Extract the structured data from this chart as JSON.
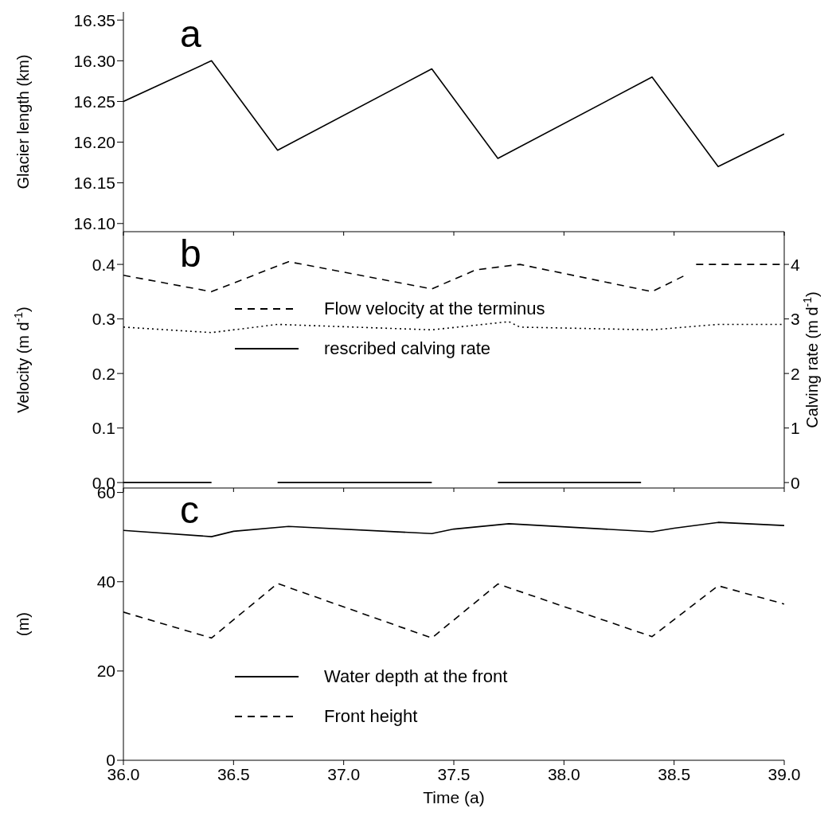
{
  "chart_data": [
    {
      "type": "line",
      "ylabel": "Glacier length (km)",
      "annotations": [
        "a"
      ],
      "xlim": [
        36,
        39
      ],
      "xticks": [
        36,
        36.5,
        37,
        37.5,
        38,
        38.5,
        39
      ],
      "ylim": [
        16.09,
        16.36
      ],
      "yticks": [
        {
          "value": 16.1,
          "label": "16.10"
        },
        {
          "value": 16.15,
          "label": "16.15"
        },
        {
          "value": 16.2,
          "label": "16.20"
        },
        {
          "value": 16.25,
          "label": "16.25"
        },
        {
          "value": 16.3,
          "label": "16.30"
        },
        {
          "value": 16.35,
          "label": "16.35"
        }
      ],
      "tick_labels": "y",
      "grid": false,
      "legend": false,
      "marker": "none",
      "series": [
        {
          "color": "#000000",
          "line_style": "solid",
          "x": [
            36.0,
            36.4,
            36.7,
            37.4,
            37.7,
            38.4,
            38.7,
            39.0
          ],
          "values": [
            16.25,
            16.3,
            16.19,
            16.29,
            16.18,
            16.28,
            16.17,
            16.21
          ]
        }
      ]
    },
    {
      "type": "line",
      "ylabel": "Velocity (m d$^{-1}$)",
      "y2label": "Calving rate (m d$^{-1}$)",
      "annotations": [
        "b"
      ],
      "xlim": [
        36,
        39
      ],
      "xticks": [
        36,
        36.5,
        37,
        37.5,
        38,
        38.5,
        39
      ],
      "ylim": [
        -0.01,
        0.46
      ],
      "yticks": [
        {
          "value": 0,
          "label": "0.0"
        },
        {
          "value": 0.1,
          "label": "0.1"
        },
        {
          "value": 0.2,
          "label": "0.2"
        },
        {
          "value": 0.3,
          "label": "0.3"
        },
        {
          "value": 0.4,
          "label": "0.4"
        }
      ],
      "y2lim": [
        -0.1,
        4.6
      ],
      "y2ticks": [
        0,
        1,
        2,
        3,
        4
      ],
      "tick_labels": "y",
      "grid": false,
      "legend": "left",
      "marker": "none",
      "series": [
        {
          "name": "Flow velocity at the terminus",
          "color": "#000000",
          "line_style": "dashed",
          "x": [
            36.0,
            36.4,
            36.75,
            37.4,
            37.6,
            37.8,
            38.4,
            38.55,
            38.57,
            38.6,
            39.0
          ],
          "values": [
            0.38,
            0.35,
            0.405,
            0.355,
            0.39,
            0.4,
            0.35,
            0.38,
            null,
            0.4,
            0.4
          ]
        },
        {
          "color": "#000000",
          "line_style": "dotted",
          "x": [
            36.0,
            36.4,
            36.7,
            37.4,
            37.75,
            37.8,
            38.4,
            38.7,
            39.0
          ],
          "values": [
            0.285,
            0.275,
            0.29,
            0.28,
            0.295,
            0.285,
            0.28,
            0.29,
            0.29
          ]
        },
        {
          "name": "rescribed calving rate",
          "color": "#000000",
          "line_style": "solid",
          "axis": "y2",
          "x": [
            36.0,
            36.4,
            36.55,
            36.7,
            37.4,
            37.55,
            37.7,
            38.35
          ],
          "values": [
            0,
            0,
            null,
            0,
            0,
            null,
            0,
            0
          ]
        }
      ]
    },
    {
      "type": "line",
      "ylabel": "(m)",
      "xlabel": "Time (a)",
      "annotations": [
        "c"
      ],
      "xlim": [
        36,
        39
      ],
      "xticks": [
        {
          "value": 36,
          "label": "36.0"
        },
        {
          "value": 36.5,
          "label": "36.5"
        },
        {
          "value": 37,
          "label": "37.0"
        },
        {
          "value": 37.5,
          "label": "37.5"
        },
        {
          "value": 38,
          "label": "38.0"
        },
        {
          "value": 38.5,
          "label": "38.5"
        },
        {
          "value": 39,
          "label": "39.0"
        }
      ],
      "ylim": [
        0,
        61
      ],
      "yticks": [
        0,
        20,
        40,
        60
      ],
      "grid": false,
      "legend": "bottom",
      "marker": "none",
      "series": [
        {
          "name": "Water depth at the front",
          "color": "#000000",
          "line_style": "solid",
          "x": [
            36.0,
            36.4,
            36.5,
            36.75,
            37.4,
            37.5,
            37.75,
            38.4,
            38.5,
            38.7,
            39.0
          ],
          "values": [
            51.5,
            50.1,
            51.3,
            52.4,
            50.8,
            51.8,
            53.0,
            51.2,
            52.0,
            53.3,
            52.6
          ]
        },
        {
          "name": "Front height",
          "color": "#000000",
          "line_style": "dashed",
          "x": [
            36.0,
            36.4,
            36.7,
            37.4,
            37.7,
            38.4,
            38.7,
            39.0
          ],
          "values": [
            33.2,
            27.4,
            39.6,
            27.4,
            39.5,
            27.7,
            39.1,
            35.0
          ]
        }
      ]
    }
  ]
}
